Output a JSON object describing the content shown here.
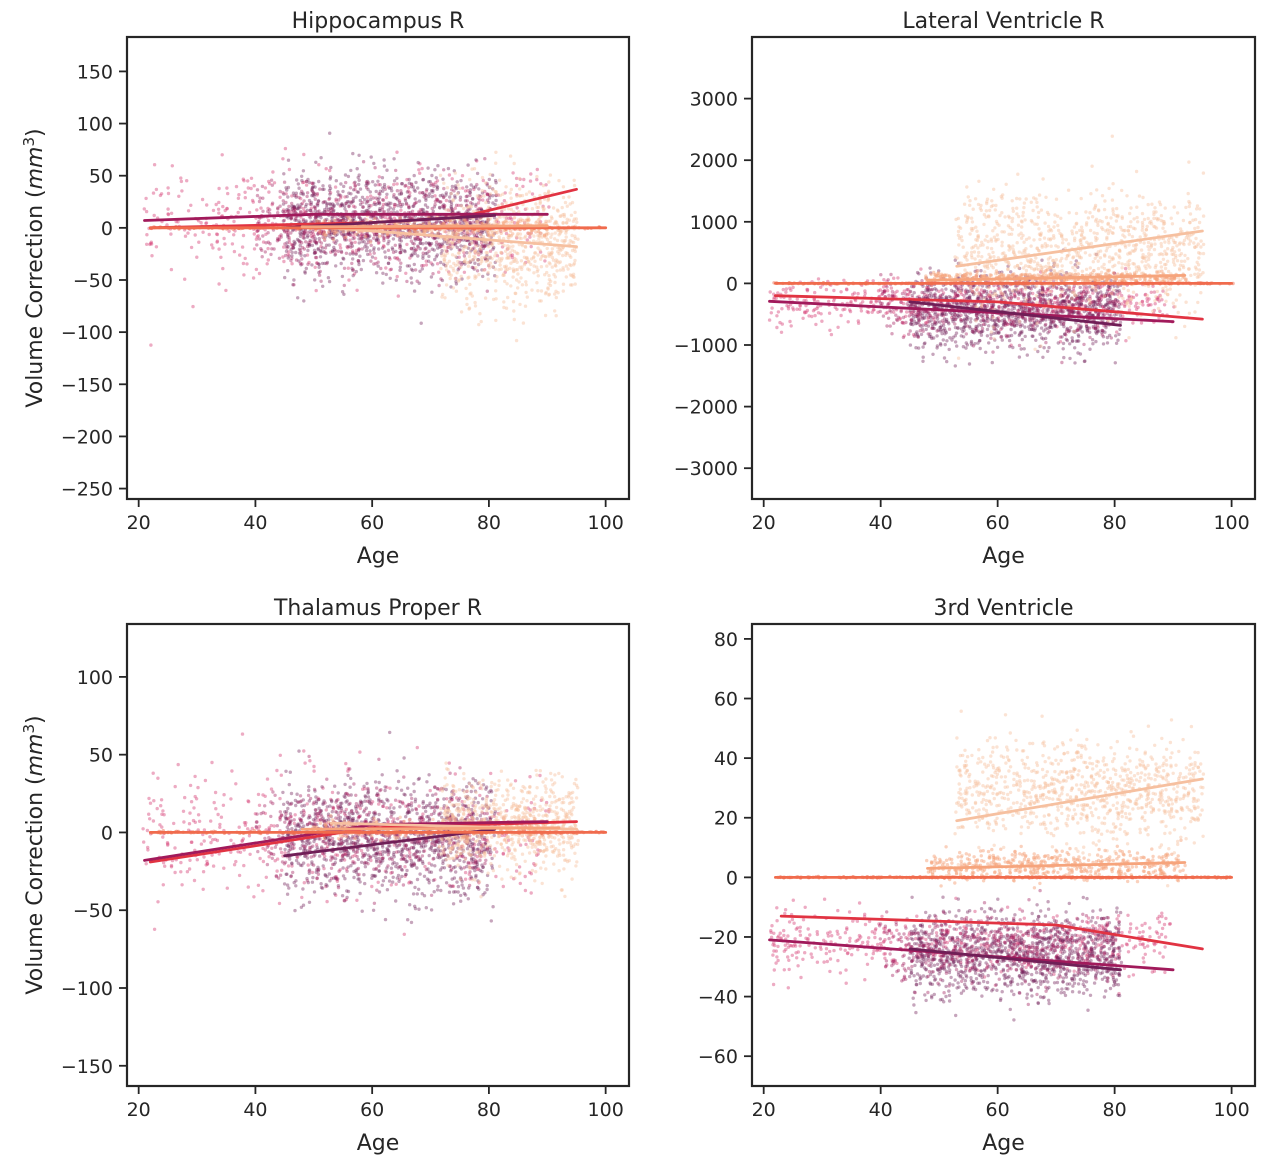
{
  "figure": {
    "ylabel_prefix": "Volume Correction (",
    "ylabel_unit": "mm",
    "ylabel_exp": "3",
    "ylabel_suffix": ")"
  },
  "palette": {
    "dark_purple": "#701f57",
    "magenta": "#a11a5b",
    "crimson": "#cf2b52",
    "pink": "#d7457a",
    "red": "#e13342",
    "coral": "#f06b4d",
    "salmon": "#f6a47c",
    "peach": "#f6c0a0",
    "light_peach": "#fbd5c0",
    "axis": "#262626"
  },
  "chart_data": [
    {
      "type": "scatter",
      "title": "Hippocampus R",
      "xlabel": "Age",
      "ylabel": "Volume Correction (mm³)",
      "xlim": [
        18,
        104
      ],
      "ylim": [
        -260,
        183
      ],
      "xticks": [
        20,
        40,
        60,
        80,
        100
      ],
      "yticks": [
        -250,
        -200,
        -150,
        -100,
        -50,
        0,
        50,
        100,
        150
      ],
      "clouds": [
        {
          "color": "#d7457a",
          "alpha": 0.45,
          "x": [
            21,
            90
          ],
          "center": 5,
          "spread": 28,
          "n": 500
        },
        {
          "color": "#701f57",
          "alpha": 0.4,
          "x": [
            45,
            81
          ],
          "center": 5,
          "spread": 25,
          "n": 1100
        },
        {
          "color": "#a11a5b",
          "alpha": 0.4,
          "x": [
            40,
            80
          ],
          "center": 3,
          "spread": 22,
          "n": 500
        },
        {
          "color": "#f6c0a0",
          "alpha": 0.45,
          "x": [
            72,
            95
          ],
          "center": -15,
          "spread": 30,
          "n": 700
        },
        {
          "color": "#f6a47c",
          "alpha": 0.45,
          "x": [
            50,
            90
          ],
          "center": 0,
          "spread": 4,
          "n": 300
        },
        {
          "color": "#f06b4d",
          "alpha": 0.5,
          "x": [
            22,
            100
          ],
          "center": 0,
          "spread": 0.5,
          "n": 200
        }
      ],
      "series": [
        {
          "name": "line-red",
          "color": "#e13342",
          "x": [
            22,
            60,
            75,
            95
          ],
          "y": [
            0,
            5,
            10,
            37
          ]
        },
        {
          "name": "line-magenta",
          "color": "#a11a5b",
          "x": [
            21,
            50,
            90
          ],
          "y": [
            7,
            13,
            13
          ]
        },
        {
          "name": "line-dark-purple",
          "color": "#701f57",
          "x": [
            45,
            81
          ],
          "y": [
            0,
            12
          ]
        },
        {
          "name": "line-peach",
          "color": "#f6c0a0",
          "x": [
            53,
            95
          ],
          "y": [
            0,
            -18
          ]
        },
        {
          "name": "line-coral",
          "color": "#f06b4d",
          "x": [
            22,
            100
          ],
          "y": [
            0,
            0
          ]
        },
        {
          "name": "line-salmon",
          "color": "#f6a47c",
          "x": [
            48,
            90
          ],
          "y": [
            1,
            2
          ]
        }
      ]
    },
    {
      "type": "scatter",
      "title": "Lateral Ventricle R",
      "xlabel": "Age",
      "ylabel": "",
      "xlim": [
        18,
        104
      ],
      "ylim": [
        -3500,
        4000
      ],
      "xticks": [
        20,
        40,
        60,
        80,
        100
      ],
      "yticks": [
        -3000,
        -2000,
        -1000,
        0,
        1000,
        2000,
        3000
      ],
      "clouds": [
        {
          "color": "#d7457a",
          "alpha": 0.45,
          "x": [
            21,
            90
          ],
          "center": -300,
          "spread": 200,
          "n": 500
        },
        {
          "color": "#701f57",
          "alpha": 0.4,
          "x": [
            45,
            81
          ],
          "center": -450,
          "spread": 300,
          "n": 1100
        },
        {
          "color": "#a11a5b",
          "alpha": 0.4,
          "x": [
            40,
            80
          ],
          "center": -400,
          "spread": 250,
          "n": 400
        },
        {
          "color": "#f6c0a0",
          "alpha": 0.45,
          "x": [
            53,
            95
          ],
          "center": 500,
          "spread": 500,
          "n": 1000
        },
        {
          "color": "#f6a47c",
          "alpha": 0.5,
          "x": [
            48,
            92
          ],
          "center": 90,
          "spread": 40,
          "n": 400
        },
        {
          "color": "#f06b4d",
          "alpha": 0.5,
          "x": [
            22,
            100
          ],
          "center": 0,
          "spread": 5,
          "n": 200
        }
      ],
      "series": [
        {
          "name": "line-red",
          "color": "#e13342",
          "x": [
            22,
            60,
            95
          ],
          "y": [
            -200,
            -300,
            -580
          ]
        },
        {
          "name": "line-magenta",
          "color": "#a11a5b",
          "x": [
            21,
            90
          ],
          "y": [
            -290,
            -620
          ]
        },
        {
          "name": "line-dark-purple",
          "color": "#701f57",
          "x": [
            45,
            81
          ],
          "y": [
            -300,
            -680
          ]
        },
        {
          "name": "line-peach",
          "color": "#f6c0a0",
          "x": [
            53,
            95
          ],
          "y": [
            280,
            850
          ]
        },
        {
          "name": "line-coral",
          "color": "#f06b4d",
          "x": [
            22,
            100
          ],
          "y": [
            0,
            0
          ]
        },
        {
          "name": "line-salmon",
          "color": "#f6a47c",
          "x": [
            48,
            92
          ],
          "y": [
            50,
            130
          ]
        }
      ]
    },
    {
      "type": "scatter",
      "title": "Thalamus Proper R",
      "xlabel": "Age",
      "ylabel": "Volume Correction (mm³)",
      "xlim": [
        18,
        104
      ],
      "ylim": [
        -163,
        134
      ],
      "xticks": [
        20,
        40,
        60,
        80,
        100
      ],
      "yticks": [
        -150,
        -100,
        -50,
        0,
        50,
        100
      ],
      "clouds": [
        {
          "color": "#d7457a",
          "alpha": 0.45,
          "x": [
            21,
            90
          ],
          "center": 0,
          "spread": 20,
          "n": 500
        },
        {
          "color": "#701f57",
          "alpha": 0.4,
          "x": [
            45,
            81
          ],
          "center": -5,
          "spread": 18,
          "n": 1100
        },
        {
          "color": "#a11a5b",
          "alpha": 0.4,
          "x": [
            40,
            80
          ],
          "center": 0,
          "spread": 15,
          "n": 400
        },
        {
          "color": "#f6c0a0",
          "alpha": 0.45,
          "x": [
            72,
            95
          ],
          "center": 5,
          "spread": 15,
          "n": 700
        },
        {
          "color": "#f6a47c",
          "alpha": 0.45,
          "x": [
            50,
            90
          ],
          "center": 2,
          "spread": 3,
          "n": 300
        },
        {
          "color": "#f06b4d",
          "alpha": 0.5,
          "x": [
            22,
            100
          ],
          "center": 0,
          "spread": 0.4,
          "n": 200
        }
      ],
      "series": [
        {
          "name": "line-red",
          "color": "#e13342",
          "x": [
            22,
            60,
            95
          ],
          "y": [
            -19,
            3,
            7
          ]
        },
        {
          "name": "line-magenta",
          "color": "#a11a5b",
          "x": [
            21,
            60,
            90
          ],
          "y": [
            -18,
            5,
            7
          ]
        },
        {
          "name": "line-dark-purple",
          "color": "#701f57",
          "x": [
            45,
            81
          ],
          "y": [
            -15,
            2
          ]
        },
        {
          "name": "line-peach",
          "color": "#f6c0a0",
          "x": [
            53,
            95
          ],
          "y": [
            6,
            2
          ]
        },
        {
          "name": "line-coral",
          "color": "#f06b4d",
          "x": [
            22,
            100
          ],
          "y": [
            0,
            0
          ]
        },
        {
          "name": "line-salmon",
          "color": "#f6a47c",
          "x": [
            48,
            92
          ],
          "y": [
            2,
            3
          ]
        }
      ]
    },
    {
      "type": "scatter",
      "title": "3rd Ventricle",
      "xlabel": "Age",
      "ylabel": "",
      "xlim": [
        18,
        104
      ],
      "ylim": [
        -70,
        85
      ],
      "xticks": [
        20,
        40,
        60,
        80,
        100
      ],
      "yticks": [
        -60,
        -40,
        -20,
        0,
        20,
        40,
        60,
        80
      ],
      "clouds": [
        {
          "color": "#d7457a",
          "alpha": 0.45,
          "x": [
            21,
            90
          ],
          "center": -22,
          "spread": 5,
          "n": 500
        },
        {
          "color": "#701f57",
          "alpha": 0.4,
          "x": [
            45,
            81
          ],
          "center": -26,
          "spread": 7,
          "n": 1100
        },
        {
          "color": "#a11a5b",
          "alpha": 0.4,
          "x": [
            40,
            80
          ],
          "center": -24,
          "spread": 6,
          "n": 400
        },
        {
          "color": "#f6c0a0",
          "alpha": 0.45,
          "x": [
            53,
            95
          ],
          "center": 28,
          "spread": 9,
          "n": 900
        },
        {
          "color": "#f6a47c",
          "alpha": 0.5,
          "x": [
            48,
            92
          ],
          "center": 4,
          "spread": 2.5,
          "n": 500
        },
        {
          "color": "#f06b4d",
          "alpha": 0.6,
          "x": [
            22,
            100
          ],
          "center": 0,
          "spread": 0.1,
          "n": 250
        }
      ],
      "series": [
        {
          "name": "line-red",
          "color": "#e13342",
          "x": [
            23,
            70,
            95
          ],
          "y": [
            -13,
            -16,
            -24
          ]
        },
        {
          "name": "line-magenta",
          "color": "#a11a5b",
          "x": [
            21,
            90
          ],
          "y": [
            -21,
            -31
          ]
        },
        {
          "name": "line-dark-purple",
          "color": "#701f57",
          "x": [
            45,
            81
          ],
          "y": [
            -24,
            -31
          ]
        },
        {
          "name": "line-peach",
          "color": "#f6c0a0",
          "x": [
            53,
            95
          ],
          "y": [
            19,
            33
          ]
        },
        {
          "name": "line-coral",
          "color": "#f06b4d",
          "x": [
            22,
            100
          ],
          "y": [
            0,
            0
          ]
        },
        {
          "name": "line-salmon",
          "color": "#f6a47c",
          "x": [
            48,
            92
          ],
          "y": [
            3,
            5
          ]
        }
      ]
    }
  ]
}
